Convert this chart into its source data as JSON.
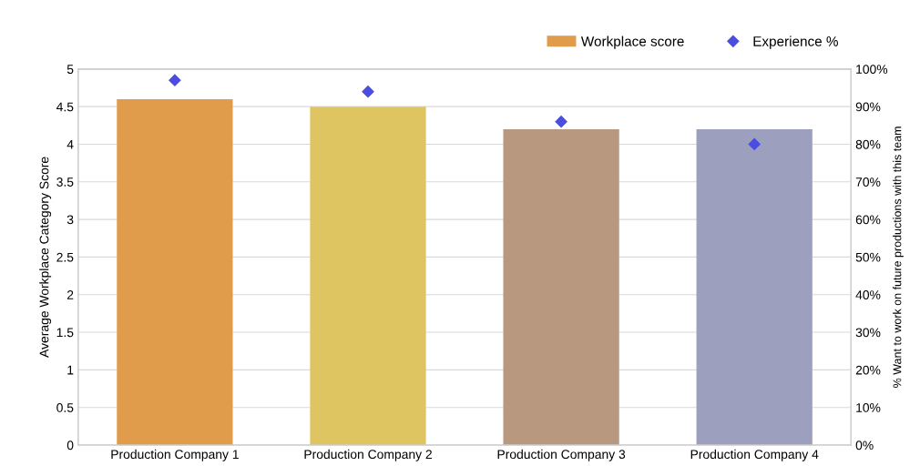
{
  "chart_data": {
    "type": "bar",
    "categories": [
      "Production Company 1",
      "Production Company 2",
      "Production Company 3",
      "Production Company 4"
    ],
    "series": [
      {
        "name": "Workplace score",
        "color": "#e09c4a",
        "colors": [
          "#e09c4a",
          "#dfc462",
          "#b99880",
          "#9c9fbd"
        ],
        "values": [
          4.6,
          4.5,
          4.2,
          4.2
        ]
      },
      {
        "name": "Experience %",
        "type": "scatter",
        "axis": "y2",
        "color": "#4b4de0",
        "marker": "diamond",
        "values": [
          97,
          94,
          86,
          80
        ]
      }
    ],
    "ylabel": "Average Workplace Category Score",
    "y2label": "% Want to work on future productions with this team",
    "ylim": [
      0,
      5
    ],
    "yticks": [
      0,
      0.5,
      1,
      1.5,
      2,
      2.5,
      3,
      3.5,
      4,
      4.5,
      5
    ],
    "y2lim": [
      0,
      100
    ],
    "y2ticks": [
      {
        "value": 0,
        "label": "0%"
      },
      {
        "value": 10,
        "label": "10%"
      },
      {
        "value": 20,
        "label": "20%"
      },
      {
        "value": 30,
        "label": "30%"
      },
      {
        "value": 40,
        "label": "40%"
      },
      {
        "value": 50,
        "label": "50%"
      },
      {
        "value": 60,
        "label": "60%"
      },
      {
        "value": 70,
        "label": "70%"
      },
      {
        "value": 80,
        "label": "80%"
      },
      {
        "value": 90,
        "label": "90%"
      },
      {
        "value": 100,
        "label": "100%"
      }
    ],
    "grid": "y",
    "legend": "top right"
  }
}
